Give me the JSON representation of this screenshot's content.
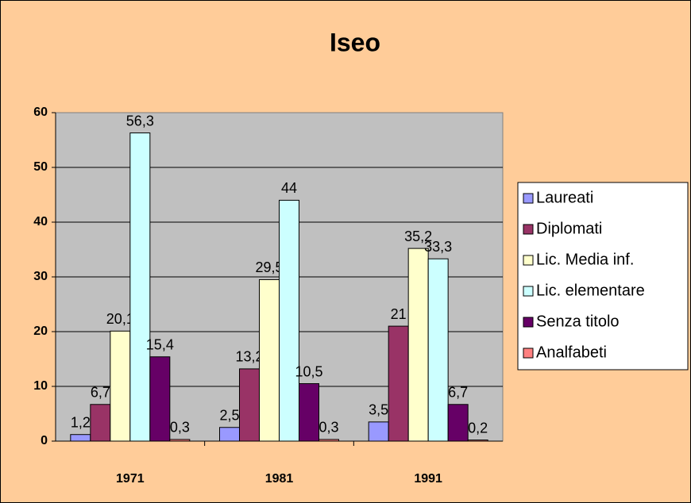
{
  "chart_data": {
    "type": "bar",
    "title": "Iseo",
    "categories": [
      "1971",
      "1981",
      "1991"
    ],
    "series": [
      {
        "name": "Laureati",
        "color": "#9999ff",
        "values": [
          1.2,
          2.5,
          3.5
        ],
        "value_labels": [
          "1,2",
          "2,5",
          "3,5"
        ]
      },
      {
        "name": "Diplomati",
        "color": "#993366",
        "values": [
          6.7,
          13.2,
          21
        ],
        "value_labels": [
          "6,7",
          "13,2",
          "21"
        ]
      },
      {
        "name": "Lic. Media inf.",
        "color": "#ffffcc",
        "values": [
          20.1,
          29.5,
          35.2
        ],
        "value_labels": [
          "20,1",
          "29,5",
          "35,2"
        ]
      },
      {
        "name": "Lic. elementare",
        "color": "#ccffff",
        "values": [
          56.3,
          44,
          33.3
        ],
        "value_labels": [
          "56,3",
          "44",
          "33,3"
        ]
      },
      {
        "name": "Senza titolo",
        "color": "#660066",
        "values": [
          15.4,
          10.5,
          6.7
        ],
        "value_labels": [
          "15,4",
          "10,5",
          "6,7"
        ]
      },
      {
        "name": "Analfabeti",
        "color": "#ff8080",
        "values": [
          0.3,
          0.3,
          0.2
        ],
        "value_labels": [
          "0,3",
          "0,3",
          "0,2"
        ]
      }
    ],
    "ylim": [
      0,
      60
    ],
    "yticks": [
      0,
      10,
      20,
      30,
      40,
      50,
      60
    ],
    "grid": true,
    "legend": "right"
  }
}
